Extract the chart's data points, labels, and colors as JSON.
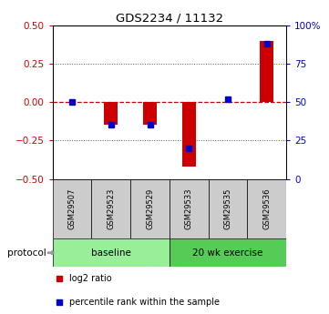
{
  "title": "GDS2234 / 11132",
  "samples": [
    "GSM29507",
    "GSM29523",
    "GSM29529",
    "GSM29533",
    "GSM29535",
    "GSM29536"
  ],
  "log2_ratio": [
    0.0,
    -0.15,
    -0.15,
    -0.42,
    0.0,
    0.4
  ],
  "percentile_rank": [
    50,
    35,
    35,
    20,
    52,
    88
  ],
  "groups": [
    {
      "label": "baseline",
      "indices": [
        0,
        1,
        2
      ],
      "color": "#99ee99"
    },
    {
      "label": "20 wk exercise",
      "indices": [
        3,
        4,
        5
      ],
      "color": "#55cc55"
    }
  ],
  "bar_color_red": "#cc0000",
  "bar_color_blue": "#0000cc",
  "ylim_left": [
    -0.5,
    0.5
  ],
  "ylim_right": [
    0,
    100
  ],
  "yticks_left": [
    -0.5,
    -0.25,
    0.0,
    0.25,
    0.5
  ],
  "yticks_right": [
    0,
    25,
    50,
    75,
    100
  ],
  "ytick_labels_right": [
    "0",
    "25",
    "50",
    "75",
    "100%"
  ],
  "hlines": [
    -0.25,
    0.0,
    0.25
  ],
  "hline_zero_color": "#cc0000",
  "hline_zero_style": "--",
  "hline_other_color": "#555555",
  "hline_other_style": ":",
  "left_tick_color": "#cc0000",
  "right_tick_color": "#0000cc",
  "legend_items": [
    {
      "label": "log2 ratio",
      "color": "#cc0000"
    },
    {
      "label": "percentile rank within the sample",
      "color": "#0000cc"
    }
  ],
  "protocol_label": "protocol",
  "bar_width": 0.35,
  "percentile_marker_size": 5,
  "background_color": "white",
  "sample_box_color": "#cccccc",
  "spine_color": "black"
}
